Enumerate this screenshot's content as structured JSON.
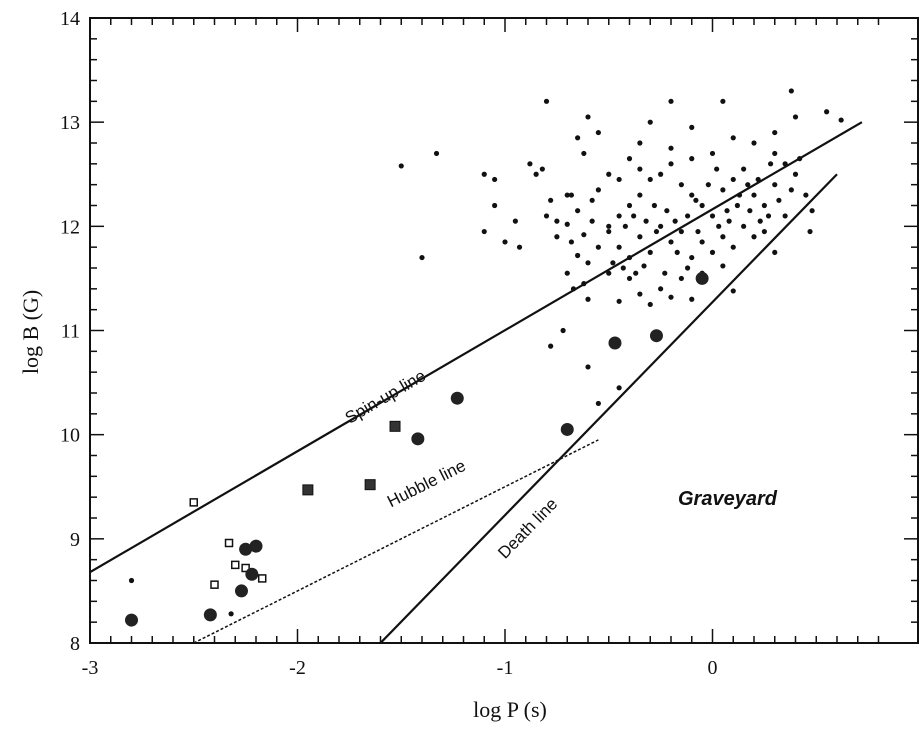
{
  "chart_data": {
    "type": "scatter",
    "xlabel": "log P (s)",
    "ylabel": "log B (G)",
    "xlim": [
      -3,
      1
    ],
    "ylim": [
      8,
      14
    ],
    "x_ticks": [
      "-3",
      "-2",
      "-1",
      "0"
    ],
    "y_ticks": [
      "8",
      "9",
      "10",
      "11",
      "12",
      "13",
      "14"
    ],
    "lines": [
      {
        "name": "Spin-up line",
        "style": "solid",
        "points": [
          [
            -3,
            8.68
          ],
          [
            0.72,
            13.0
          ]
        ]
      },
      {
        "name": "Hubble line",
        "style": "dashed",
        "points": [
          [
            -2.5,
            8.0
          ],
          [
            -0.55,
            9.95
          ]
        ]
      },
      {
        "name": "Death line",
        "style": "solid",
        "points": [
          [
            -1.6,
            8.0
          ],
          [
            0.6,
            12.5
          ]
        ]
      }
    ],
    "region_label": "Graveyard",
    "large_circles": [
      [
        -2.8,
        8.22
      ],
      [
        -2.42,
        8.27
      ],
      [
        -2.27,
        8.5
      ],
      [
        -2.25,
        8.9
      ],
      [
        -2.2,
        8.93
      ],
      [
        -2.22,
        8.66
      ],
      [
        -1.42,
        9.96
      ],
      [
        -1.23,
        10.35
      ],
      [
        -0.7,
        10.05
      ],
      [
        -0.47,
        10.88
      ],
      [
        -0.27,
        10.95
      ],
      [
        -0.05,
        11.5
      ]
    ],
    "open_squares": [
      [
        -2.5,
        9.35
      ],
      [
        -2.33,
        8.96
      ],
      [
        -2.4,
        8.56
      ],
      [
        -2.3,
        8.75
      ],
      [
        -2.25,
        8.72
      ],
      [
        -2.17,
        8.62
      ]
    ],
    "filled_squares": [
      [
        -1.95,
        9.47
      ],
      [
        -1.65,
        9.52
      ],
      [
        -1.53,
        10.08
      ]
    ],
    "small_dots": [
      [
        -2.8,
        8.6
      ],
      [
        -2.32,
        8.28
      ],
      [
        -1.5,
        12.58
      ],
      [
        -1.33,
        12.7
      ],
      [
        -1.4,
        11.7
      ],
      [
        -1.1,
        12.5
      ],
      [
        -1.05,
        12.45
      ],
      [
        -1.05,
        12.2
      ],
      [
        -1.1,
        11.95
      ],
      [
        -1.0,
        11.85
      ],
      [
        -0.95,
        12.05
      ],
      [
        -0.93,
        11.8
      ],
      [
        -0.88,
        12.6
      ],
      [
        -0.85,
        12.5
      ],
      [
        -0.82,
        12.55
      ],
      [
        -0.8,
        13.2
      ],
      [
        -0.78,
        12.25
      ],
      [
        -0.75,
        12.05
      ],
      [
        -0.7,
        12.02
      ],
      [
        -0.72,
        11.0
      ],
      [
        -0.78,
        10.85
      ],
      [
        -0.68,
        12.3
      ],
      [
        -0.65,
        12.85
      ],
      [
        -0.62,
        12.7
      ],
      [
        -0.6,
        13.05
      ],
      [
        -0.55,
        12.9
      ],
      [
        -0.58,
        12.25
      ],
      [
        -0.6,
        10.65
      ],
      [
        -0.55,
        10.3
      ],
      [
        -0.45,
        10.45
      ],
      [
        -0.4,
        12.65
      ],
      [
        -0.3,
        13.0
      ],
      [
        -0.2,
        13.2
      ],
      [
        -0.1,
        12.95
      ],
      [
        0.05,
        13.2
      ],
      [
        0.2,
        12.8
      ],
      [
        0.3,
        12.9
      ],
      [
        0.38,
        13.3
      ],
      [
        0.4,
        13.05
      ],
      [
        0.55,
        13.1
      ],
      [
        0.62,
        13.02
      ],
      [
        0.48,
        12.15
      ],
      [
        0.3,
        11.75
      ],
      [
        0.1,
        11.38
      ],
      [
        -0.1,
        11.3
      ],
      [
        -0.65,
        11.72
      ],
      [
        -0.7,
        11.55
      ],
      [
        -0.62,
        11.45
      ],
      [
        -0.5,
        11.55
      ],
      [
        -0.45,
        11.28
      ],
      [
        -0.35,
        11.35
      ],
      [
        -0.3,
        11.25
      ],
      [
        -0.25,
        11.4
      ],
      [
        -0.2,
        11.32
      ],
      [
        -0.4,
        11.5
      ],
      [
        -0.6,
        11.65
      ],
      [
        -0.55,
        11.8
      ],
      [
        -0.68,
        11.85
      ],
      [
        -0.62,
        11.92
      ],
      [
        -0.58,
        12.05
      ],
      [
        -0.5,
        11.95
      ],
      [
        -0.45,
        12.1
      ],
      [
        -0.4,
        12.2
      ],
      [
        -0.35,
        12.3
      ],
      [
        -0.3,
        12.45
      ],
      [
        -0.25,
        12.5
      ],
      [
        -0.2,
        12.6
      ],
      [
        -0.15,
        12.4
      ],
      [
        -0.1,
        12.3
      ],
      [
        -0.05,
        12.2
      ],
      [
        0.0,
        12.1
      ],
      [
        0.05,
        12.35
      ],
      [
        0.1,
        12.45
      ],
      [
        0.15,
        12.55
      ],
      [
        0.2,
        12.3
      ],
      [
        0.25,
        12.2
      ],
      [
        0.3,
        12.4
      ],
      [
        0.35,
        12.6
      ],
      [
        0.4,
        12.5
      ],
      [
        0.35,
        12.1
      ],
      [
        0.25,
        11.95
      ],
      [
        0.15,
        12.0
      ],
      [
        0.05,
        11.9
      ],
      [
        -0.05,
        11.85
      ],
      [
        -0.15,
        11.95
      ],
      [
        -0.25,
        12.0
      ],
      [
        -0.35,
        11.9
      ],
      [
        -0.45,
        11.8
      ],
      [
        -0.5,
        12.0
      ],
      [
        -0.4,
        11.7
      ],
      [
        -0.3,
        11.75
      ],
      [
        -0.2,
        11.85
      ],
      [
        -0.1,
        11.7
      ],
      [
        0.0,
        11.75
      ],
      [
        0.1,
        11.8
      ],
      [
        0.2,
        11.9
      ],
      [
        -0.55,
        12.35
      ],
      [
        -0.5,
        12.5
      ],
      [
        -0.45,
        12.45
      ],
      [
        -0.35,
        12.55
      ],
      [
        -0.28,
        12.2
      ],
      [
        -0.22,
        12.15
      ],
      [
        -0.18,
        12.05
      ],
      [
        -0.12,
        12.1
      ],
      [
        -0.08,
        12.25
      ],
      [
        -0.02,
        12.4
      ],
      [
        0.02,
        12.55
      ],
      [
        0.08,
        12.05
      ],
      [
        0.12,
        12.2
      ],
      [
        0.18,
        12.15
      ],
      [
        0.22,
        12.45
      ],
      [
        0.28,
        12.6
      ],
      [
        0.32,
        12.25
      ],
      [
        0.38,
        12.35
      ],
      [
        0.42,
        12.65
      ],
      [
        -0.65,
        12.15
      ],
      [
        -0.7,
        12.3
      ],
      [
        -0.42,
        12.0
      ],
      [
        -0.38,
        12.1
      ],
      [
        -0.32,
        12.05
      ],
      [
        -0.27,
        11.95
      ],
      [
        -0.17,
        11.75
      ],
      [
        -0.12,
        11.6
      ],
      [
        -0.07,
        11.95
      ],
      [
        0.03,
        12.0
      ],
      [
        0.07,
        12.15
      ],
      [
        0.13,
        12.3
      ],
      [
        0.17,
        12.4
      ],
      [
        0.23,
        12.05
      ],
      [
        0.27,
        12.1
      ],
      [
        -0.48,
        11.65
      ],
      [
        -0.43,
        11.6
      ],
      [
        -0.37,
        11.55
      ],
      [
        -0.33,
        11.62
      ],
      [
        -0.23,
        11.55
      ],
      [
        -0.15,
        11.5
      ],
      [
        -0.05,
        11.55
      ],
      [
        0.05,
        11.62
      ],
      [
        -0.6,
        11.3
      ],
      [
        -0.67,
        11.4
      ],
      [
        -0.2,
        12.75
      ],
      [
        -0.1,
        12.65
      ],
      [
        0.0,
        12.7
      ],
      [
        0.1,
        12.85
      ],
      [
        -0.35,
        12.8
      ],
      [
        0.3,
        12.7
      ],
      [
        0.45,
        12.3
      ],
      [
        0.47,
        11.95
      ],
      [
        -0.75,
        11.9
      ],
      [
        -0.8,
        12.1
      ]
    ]
  }
}
